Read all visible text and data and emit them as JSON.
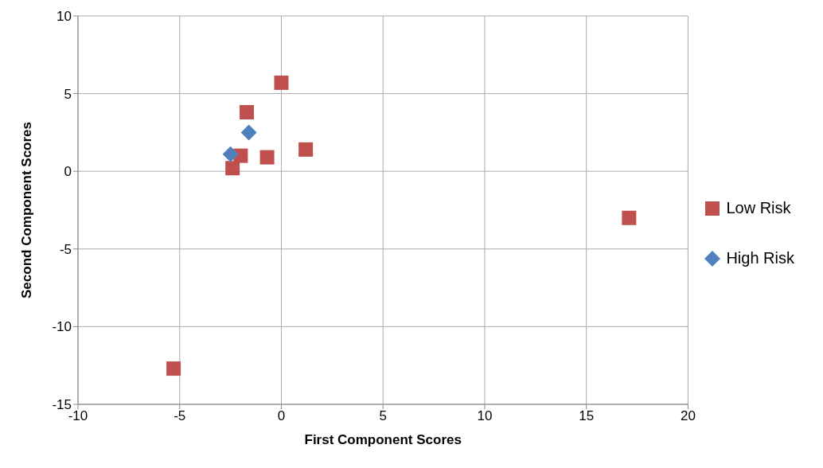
{
  "chart_data": {
    "type": "scatter",
    "xlabel": "First Component Scores",
    "ylabel": "Second Component Scores",
    "xlim": [
      -10,
      20
    ],
    "xticks": [
      -10,
      -5,
      0,
      5,
      10,
      15,
      20
    ],
    "ylim": [
      -15,
      10
    ],
    "yticks": [
      -15,
      -10,
      -5,
      0,
      5,
      10
    ],
    "grid": true,
    "legend": "right",
    "series": [
      {
        "name": "Low Risk",
        "color": "#c0504d",
        "marker": "square",
        "x": [
          0.0,
          -1.7,
          -2.0,
          -2.4,
          -0.7,
          1.2,
          17.1,
          -5.3
        ],
        "values": [
          5.7,
          3.8,
          1.0,
          0.2,
          0.9,
          1.4,
          -3.0,
          -12.7
        ]
      },
      {
        "name": "High Risk",
        "color": "#4f81bd",
        "marker": "diamond",
        "x": [
          -1.6,
          -2.5
        ],
        "values": [
          2.5,
          1.1
        ]
      }
    ]
  }
}
